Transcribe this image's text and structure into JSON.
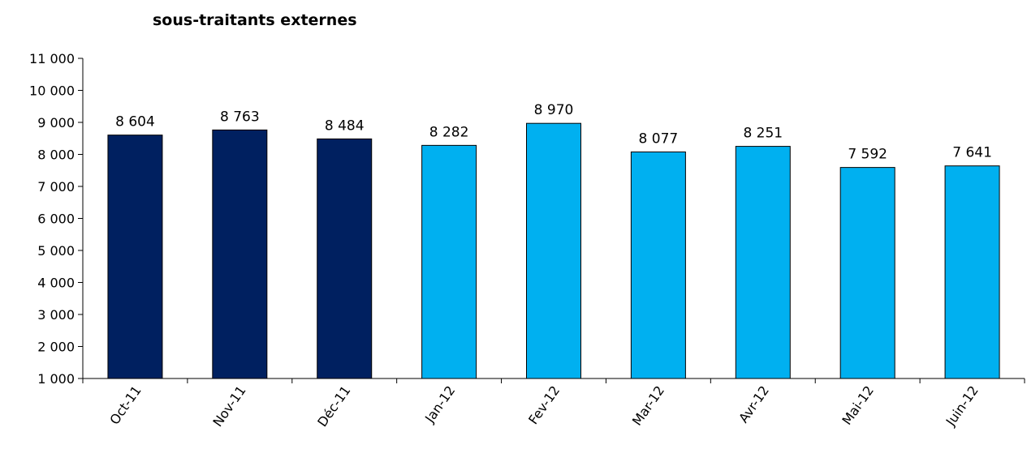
{
  "chart_data": {
    "type": "bar",
    "title": "sous-traitants externes",
    "categories": [
      "Oct-11",
      "Nov-11",
      "Déc-11",
      "Jan-12",
      "Fev-12",
      "Mar-12",
      "Avr-12",
      "Mai-12",
      "Juin-12"
    ],
    "values": [
      8604,
      8763,
      8484,
      8282,
      8970,
      8077,
      8251,
      7592,
      7641
    ],
    "value_labels": [
      "8 604",
      "8 763",
      "8 484",
      "8 282",
      "8 970",
      "8 077",
      "8 251",
      "7 592",
      "7 641"
    ],
    "ylim": [
      1000,
      11000
    ],
    "yticks": [
      1000,
      2000,
      3000,
      4000,
      5000,
      6000,
      7000,
      8000,
      9000,
      10000,
      11000
    ],
    "ytick_labels": [
      "1 000",
      "2 000",
      "3 000",
      "4 000",
      "5 000",
      "6 000",
      "7 000",
      "8 000",
      "9 000",
      "10 000",
      "11 000"
    ],
    "bar_colors": [
      "#002060",
      "#002060",
      "#002060",
      "#00B0F0",
      "#00B0F0",
      "#00B0F0",
      "#00B0F0",
      "#00B0F0",
      "#00B0F0"
    ],
    "grid": false,
    "legend": "none"
  }
}
